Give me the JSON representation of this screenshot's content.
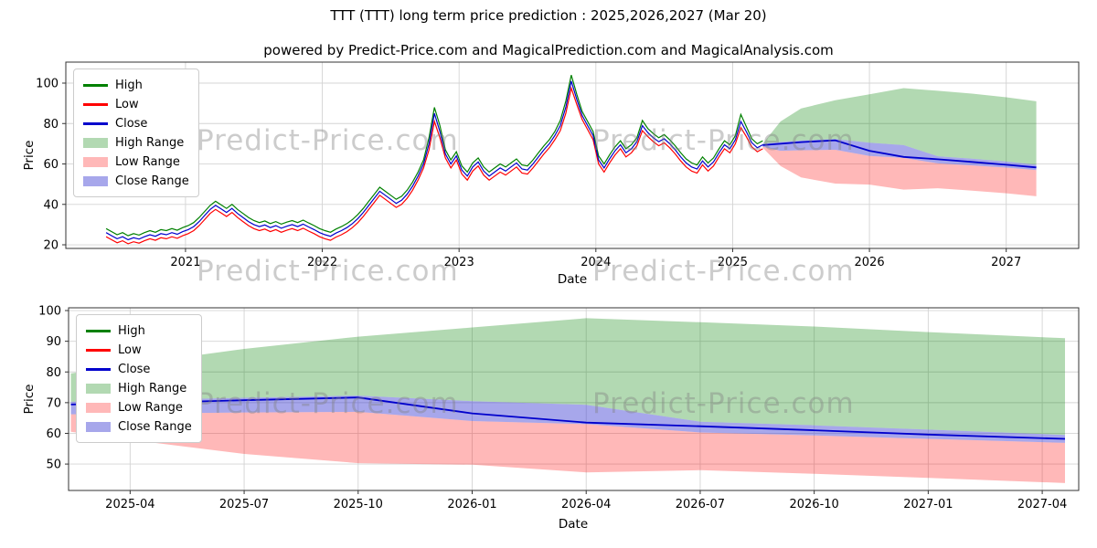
{
  "page": {
    "title": "TTT (TTT) long term price prediction : 2025,2026,2027 (Mar 20)",
    "subtitle": "powered by Predict-Price.com and MagicalPrediction.com and MagicalAnalysis.com"
  },
  "watermark": "Predict-Price.com",
  "colors": {
    "high": "#008000",
    "low": "#ff0000",
    "close": "#0000cc",
    "high_range": "rgba(0,128,0,0.30)",
    "low_range": "rgba(255,0,0,0.28)",
    "close_range": "rgba(60,60,210,0.45)",
    "grid": "#d4d4d4",
    "spine": "#333333"
  },
  "legend": {
    "items": [
      {
        "label": "High",
        "type": "line",
        "color": "#008000"
      },
      {
        "label": "Low",
        "type": "line",
        "color": "#ff0000"
      },
      {
        "label": "Close",
        "type": "line",
        "color": "#0000cc"
      },
      {
        "label": "High Range",
        "type": "band",
        "color": "rgba(0,128,0,0.30)"
      },
      {
        "label": "Low Range",
        "type": "band",
        "color": "rgba(255,0,0,0.28)"
      },
      {
        "label": "Close Range",
        "type": "band",
        "color": "rgba(60,60,210,0.45)"
      }
    ]
  },
  "chart_data": [
    {
      "type": "line",
      "title": "TTT historical prices with 2025-2027 prediction ranges",
      "xlabel": "Date",
      "ylabel": "Price",
      "xlim": [
        2020.125,
        2027.53
      ],
      "ylim": [
        18.2,
        110.4
      ],
      "grid": true,
      "legend_position": "upper left",
      "xticks": {
        "values": [
          2021,
          2022,
          2023,
          2024,
          2025,
          2026,
          2027
        ],
        "labels": [
          "2021",
          "2022",
          "2023",
          "2024",
          "2025",
          "2026",
          "2027"
        ]
      },
      "yticks": {
        "values": [
          20,
          40,
          60,
          80,
          100
        ],
        "labels": [
          "20",
          "40",
          "60",
          "80",
          "100"
        ]
      },
      "history": {
        "x_start": 2020.42,
        "x_step": 0.04,
        "close": [
          26,
          24.5,
          23,
          24,
          22.5,
          23.5,
          22.8,
          24,
          25,
          24.2,
          25.5,
          25,
          26,
          25.2,
          26.5,
          27.5,
          29,
          31.5,
          34.5,
          37.5,
          39.5,
          37.8,
          36,
          38,
          35.5,
          33.5,
          31.5,
          30,
          29,
          29.8,
          28.5,
          29.5,
          28.2,
          29.2,
          30,
          29,
          30.2,
          28.8,
          27.5,
          26,
          25,
          24.2,
          25.8,
          27,
          28.5,
          30.5,
          33,
          36,
          39.5,
          43,
          46.5,
          44.5,
          42.5,
          40.5,
          42,
          45,
          49,
          54,
          60,
          70,
          85,
          76,
          65,
          60,
          64,
          57,
          54,
          58.5,
          61,
          56.5,
          54,
          56,
          58,
          56.5,
          58.5,
          60.5,
          57.5,
          57,
          60,
          63.5,
          67,
          70,
          74,
          79,
          88,
          101,
          92,
          84,
          79,
          74,
          62,
          58,
          62.5,
          66.5,
          69.5,
          65.5,
          67.5,
          71,
          79,
          75.5,
          73,
          71,
          72.5,
          70,
          67,
          63.5,
          60.5,
          58.5,
          57.5,
          61.5,
          58.5,
          61,
          65.5,
          69.5,
          67.5,
          72,
          81,
          76,
          70.5,
          68,
          69.5
        ],
        "high": [
          28,
          26.5,
          25,
          26,
          24.5,
          25.5,
          24.8,
          26,
          27,
          26.2,
          27.5,
          27,
          28,
          27.2,
          28.5,
          29.5,
          31,
          33.5,
          36.5,
          39.5,
          41.5,
          39.8,
          38,
          40,
          37.5,
          35.5,
          33.5,
          32,
          31,
          31.8,
          30.5,
          31.5,
          30.2,
          31.2,
          32,
          31,
          32.2,
          30.8,
          29.5,
          28,
          27,
          26.2,
          27.8,
          29,
          30.5,
          32.5,
          35,
          38,
          41.5,
          45,
          48.5,
          46.5,
          44.5,
          42.5,
          44,
          47,
          51,
          56,
          62,
          73,
          88,
          79,
          67,
          62,
          66,
          59,
          56,
          60.5,
          63,
          58.5,
          56,
          58,
          60,
          58.5,
          60.5,
          62.5,
          59.5,
          59,
          62,
          65.5,
          69,
          72,
          76,
          81.5,
          91,
          104,
          94.5,
          86,
          81,
          76,
          64,
          60,
          64.5,
          68.5,
          71.5,
          67.5,
          69.5,
          73,
          81.5,
          77.5,
          75,
          73,
          74.5,
          72,
          69,
          65.5,
          62.5,
          60.5,
          59.5,
          63.5,
          60.5,
          63,
          67.5,
          71.5,
          69.5,
          74,
          84.5,
          78.5,
          72.5,
          70,
          71.5
        ],
        "low": [
          24,
          22.5,
          21,
          22,
          20.5,
          21.5,
          20.8,
          22,
          23,
          22.2,
          23.5,
          23,
          24,
          23.2,
          24.5,
          25.5,
          27,
          29.5,
          32.5,
          35.5,
          37.5,
          35.8,
          34,
          36,
          33.5,
          31.5,
          29.5,
          28,
          27,
          27.8,
          26.5,
          27.5,
          26.2,
          27.2,
          28,
          27,
          28.2,
          26.8,
          25.5,
          24,
          23,
          22.2,
          23.8,
          25,
          26.5,
          28.5,
          31,
          34,
          37.5,
          41,
          44.5,
          42.5,
          40.5,
          38.5,
          40,
          43,
          47,
          52,
          58,
          67,
          81,
          73,
          63,
          58,
          62,
          55,
          52,
          56.5,
          59,
          54.5,
          52,
          54,
          56,
          54.5,
          56.5,
          58.5,
          55.5,
          55,
          58,
          61.5,
          65,
          68,
          72,
          76.5,
          85,
          97.5,
          89.5,
          82,
          77,
          72,
          60,
          56,
          60.5,
          64.5,
          67.5,
          63.5,
          65.5,
          69,
          76.5,
          73.5,
          71,
          69,
          70.5,
          68,
          65,
          61.5,
          58.5,
          56.5,
          55.5,
          59.5,
          56.5,
          59,
          63.5,
          67.5,
          65.5,
          70,
          78,
          73.5,
          68.5,
          66,
          67.5
        ]
      },
      "prediction": {
        "x": [
          2025.22,
          2025.35,
          2025.5,
          2025.75,
          2026.0,
          2026.25,
          2026.5,
          2026.75,
          2027.0,
          2027.22
        ],
        "high_top": [
          70,
          81,
          87.5,
          91.5,
          94.5,
          97.5,
          96.2,
          94.8,
          93,
          91
        ],
        "close_top": [
          70,
          70.9,
          71.6,
          72.3,
          70.5,
          69.3,
          63.8,
          62.6,
          61.2,
          59.6
        ],
        "close": [
          69.3,
          70.0,
          70.8,
          71.7,
          66.5,
          63.5,
          62.3,
          61.0,
          59.6,
          58.3
        ],
        "close_bottom": [
          68.5,
          66.5,
          66.8,
          67.0,
          64.0,
          63.0,
          60.3,
          59.3,
          58.2,
          57.0
        ],
        "low_bottom": [
          68,
          59,
          53.3,
          50.3,
          49.8,
          47.3,
          48,
          46.8,
          45.5,
          44
        ]
      }
    },
    {
      "type": "line",
      "title": "TTT 2025-2027 prediction detail",
      "xlabel": "Date",
      "ylabel": "Price",
      "xlim": [
        2025.115,
        2027.33
      ],
      "ylim": [
        41.4,
        100.9
      ],
      "grid": true,
      "legend_position": "upper left",
      "xticks": {
        "values": [
          2025.25,
          2025.5,
          2025.75,
          2026.0,
          2026.25,
          2026.5,
          2026.75,
          2027.0,
          2027.25
        ],
        "labels": [
          "2025-04",
          "2025-07",
          "2025-10",
          "2026-01",
          "2026-04",
          "2026-07",
          "2026-10",
          "2027-01",
          "2027-04"
        ]
      },
      "yticks": {
        "values": [
          50,
          60,
          70,
          80,
          90,
          100
        ],
        "labels": [
          "50",
          "60",
          "70",
          "80",
          "90",
          "100"
        ]
      },
      "prediction": {
        "x": [
          2025.12,
          2025.3,
          2025.5,
          2025.75,
          2026.0,
          2026.25,
          2026.5,
          2026.75,
          2027.0,
          2027.3
        ],
        "high_top": [
          79.5,
          83.5,
          87.5,
          91.5,
          94.5,
          97.5,
          96.2,
          94.8,
          93,
          91
        ],
        "close_top": [
          70.3,
          70.9,
          71.6,
          72.3,
          70.5,
          69.3,
          63.8,
          62.6,
          61.2,
          59.5
        ],
        "close": [
          69.4,
          70.0,
          70.8,
          71.7,
          66.5,
          63.5,
          62.3,
          61.0,
          59.6,
          58.2
        ],
        "close_bottom": [
          66.2,
          66.5,
          66.8,
          67.0,
          64.0,
          63.0,
          60.3,
          59.3,
          58.2,
          56.9
        ],
        "low_bottom": [
          60.5,
          57,
          53.3,
          50.3,
          49.8,
          47.3,
          48,
          46.8,
          45.5,
          43.8
        ]
      }
    }
  ]
}
